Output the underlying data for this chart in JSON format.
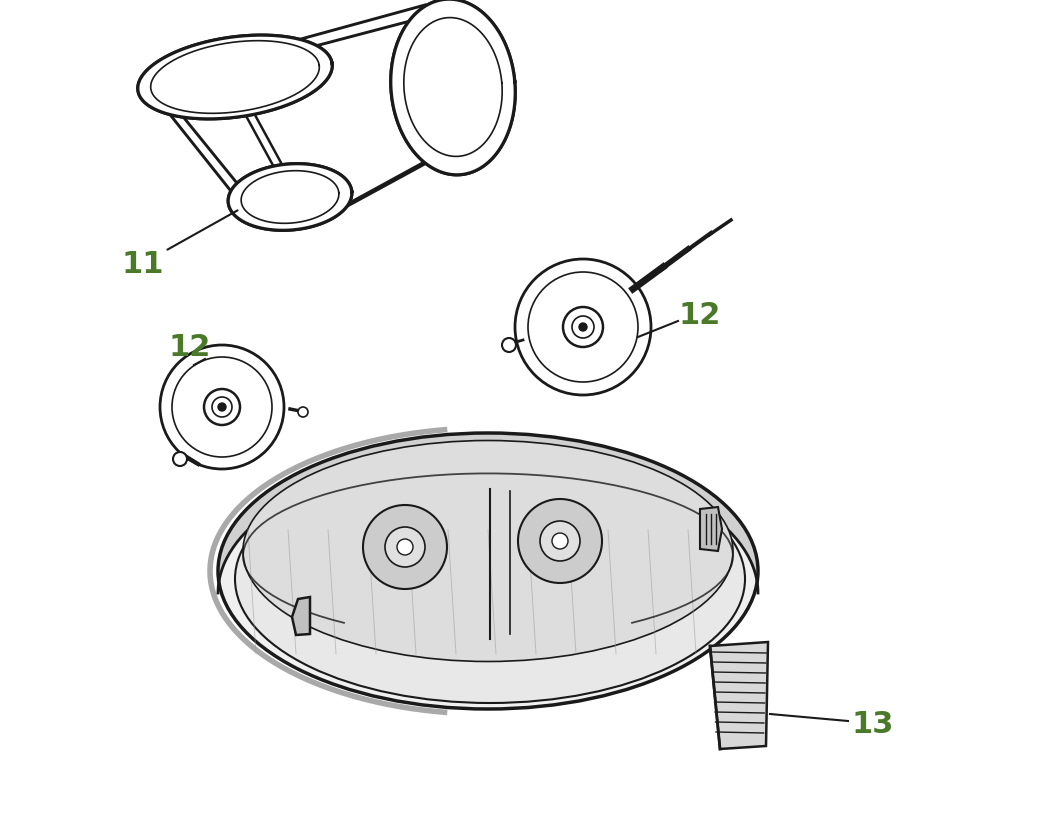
{
  "background_color": "#ffffff",
  "label_color": "#4a7a29",
  "line_color": "#1a1a1a",
  "label_11": "11",
  "label_12": "12",
  "label_13": "13",
  "label_fontsize": 22,
  "figsize": [
    10.59,
    8.28
  ],
  "dpi": 100,
  "belt_lw_outer": 2.5,
  "belt_lw_inner": 1.5,
  "pulley_lw": 2.0,
  "deck_lw": 2.0
}
